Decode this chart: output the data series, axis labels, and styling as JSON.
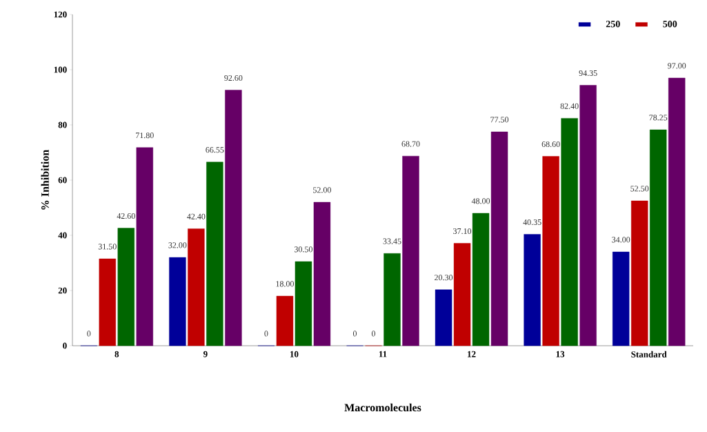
{
  "chart_data": {
    "type": "bar",
    "xlabel": "Macromolecules",
    "ylabel": "% Inhibition",
    "categories": [
      "8",
      "9",
      "10",
      "11",
      "12",
      "13",
      "Standard"
    ],
    "ylim": [
      0,
      120
    ],
    "yticks": [
      0,
      20,
      40,
      60,
      80,
      100,
      120
    ],
    "grid": false,
    "legend": "top right",
    "series": [
      {
        "name": "250",
        "color": "#000099",
        "values": [
          0,
          32.0,
          0,
          0,
          20.3,
          40.35,
          34.0
        ],
        "value_labels": [
          "0",
          "32.00",
          "0",
          "0",
          "20.30",
          "40.35",
          "34.00"
        ]
      },
      {
        "name": "500",
        "color": "#c00000",
        "values": [
          31.5,
          42.4,
          18.0,
          0,
          37.1,
          68.6,
          52.5
        ],
        "value_labels": [
          "31.50",
          "42.40",
          "18.00",
          "0",
          "37.10",
          "68.60",
          "52.50"
        ]
      },
      {
        "color": "#006600",
        "values": [
          42.6,
          66.55,
          30.5,
          33.45,
          48.0,
          82.4,
          78.25
        ],
        "value_labels": [
          "42.60",
          "66.55",
          "30.50",
          "33.45",
          "48.00",
          "82.40",
          "78.25"
        ]
      },
      {
        "color": "#660066",
        "values": [
          71.8,
          92.6,
          52.0,
          68.7,
          77.5,
          94.35,
          97.0
        ],
        "value_labels": [
          "71.80",
          "92.60",
          "52.00",
          "68.70",
          "77.50",
          "94.35",
          "97.00"
        ]
      }
    ]
  }
}
